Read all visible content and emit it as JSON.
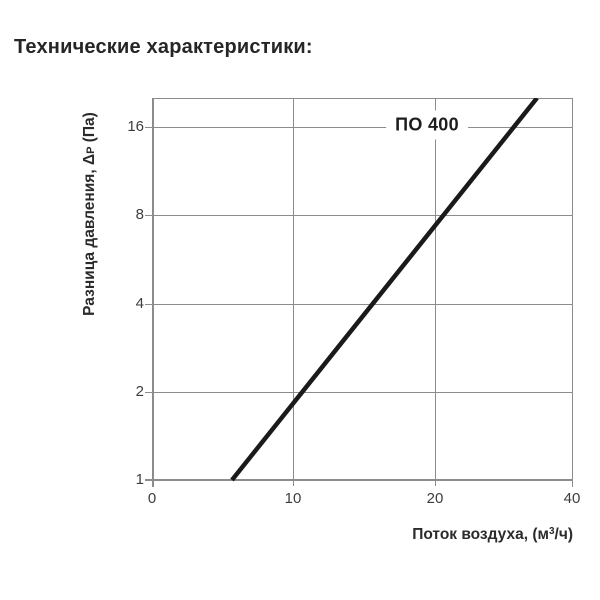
{
  "title": "Технические характеристики:",
  "chart": {
    "series_label": "ПО 400",
    "y_axis": {
      "label_prefix": "Разница давления, Δ",
      "label_sub": "P",
      "label_suffix": " (Па)",
      "tick_labels": [
        "16",
        "8",
        "4",
        "2",
        "1"
      ]
    },
    "x_axis": {
      "label_prefix": "Поток воздуха, (м",
      "label_sup": "3",
      "label_suffix": "/ч)",
      "tick_labels": [
        "0",
        "10",
        "20",
        "40"
      ]
    },
    "colors": {
      "line": "#1a1a1a",
      "grid": "#8c8c8c",
      "tick_text": "#3d3d3d",
      "title_text": "#262626"
    },
    "line_points_px": "80,382 385,0",
    "line_stroke_width": "4.5"
  },
  "chart_data": {
    "type": "line",
    "title": "Технические характеристики:",
    "xlabel": "Поток воздуха, (м³/ч)",
    "ylabel": "Разница давления, ΔP (Па)",
    "x_ticks": [
      0,
      10,
      20,
      40
    ],
    "y_ticks": [
      1,
      2,
      4,
      8,
      16
    ],
    "y_scale": "log2",
    "x_scale": "linear to 10, then log2 doubling (10, 20, 40 equally spaced)",
    "xlim": [
      0,
      40
    ],
    "ylim": [
      1,
      20.5
    ],
    "grid": true,
    "legend_position": "inline-top, label on 16-gridline",
    "series": [
      {
        "name": "ПО 400",
        "points": [
          [
            5.7,
            1
          ],
          [
            10.4,
            2
          ],
          [
            14.7,
            4
          ],
          [
            20.8,
            8
          ],
          [
            29.7,
            16
          ],
          [
            33.2,
            20.3
          ]
        ]
      }
    ]
  }
}
